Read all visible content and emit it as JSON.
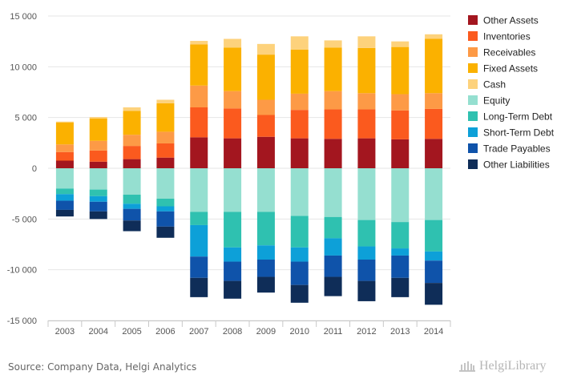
{
  "chart_data": {
    "type": "bar",
    "stacked": true,
    "categories": [
      "2003",
      "2004",
      "2005",
      "2006",
      "2007",
      "2008",
      "2009",
      "2010",
      "2011",
      "2012",
      "2013",
      "2014"
    ],
    "ylim": [
      -15000,
      15000
    ],
    "yticks": [
      15000,
      10000,
      5000,
      0,
      -5000,
      -10000,
      -15000
    ],
    "ytick_labels": [
      "15 000",
      "10 000",
      "5 000",
      "0",
      "-5 000",
      "-10 000",
      "-15 000"
    ],
    "grid": true,
    "legend_position": "right",
    "series": [
      {
        "name": "Other Assets",
        "color": "#a3161f",
        "values": [
          750,
          650,
          900,
          1050,
          3050,
          2950,
          3100,
          2950,
          2900,
          2950,
          2850,
          2900
        ]
      },
      {
        "name": "Inventories",
        "color": "#fb5a1e",
        "values": [
          850,
          1100,
          1300,
          1400,
          2950,
          2950,
          2150,
          2800,
          2900,
          2850,
          2850,
          2950
        ]
      },
      {
        "name": "Receivables",
        "color": "#fd9a46",
        "values": [
          750,
          950,
          1100,
          1150,
          2150,
          1700,
          1500,
          1600,
          1800,
          1600,
          1600,
          1550
        ]
      },
      {
        "name": "Fixed Assets",
        "color": "#fbb100",
        "values": [
          2150,
          2200,
          2350,
          2800,
          4050,
          4300,
          4450,
          4350,
          4300,
          4450,
          4650,
          5350
        ]
      },
      {
        "name": "Cash",
        "color": "#fdd27c",
        "values": [
          100,
          150,
          350,
          350,
          350,
          850,
          1050,
          1300,
          700,
          1150,
          550,
          450
        ]
      },
      {
        "name": "Equity",
        "color": "#95dfd0",
        "values": [
          -2000,
          -2100,
          -2600,
          -3000,
          -4300,
          -4300,
          -4300,
          -4700,
          -4800,
          -5100,
          -5300,
          -5100
        ]
      },
      {
        "name": "Long-Term Debt",
        "color": "#2fc1b0",
        "values": [
          -550,
          -650,
          -900,
          -750,
          -1300,
          -3500,
          -3300,
          -3100,
          -2100,
          -2600,
          -2600,
          -3100
        ]
      },
      {
        "name": "Short-Term Debt",
        "color": "#0da0d8",
        "values": [
          -650,
          -550,
          -500,
          -500,
          -3100,
          -1400,
          -1400,
          -1400,
          -1700,
          -1300,
          -700,
          -900
        ]
      },
      {
        "name": "Trade Payables",
        "color": "#0f53aa",
        "values": [
          -900,
          -950,
          -1150,
          -1500,
          -2100,
          -1900,
          -1700,
          -2300,
          -2100,
          -2100,
          -2200,
          -2200
        ]
      },
      {
        "name": "Other Liabilities",
        "color": "#0f2d58",
        "values": [
          -650,
          -750,
          -1050,
          -1100,
          -1900,
          -1750,
          -1550,
          -1750,
          -1900,
          -2000,
          -1900,
          -2150
        ]
      }
    ]
  },
  "footer": {
    "source": "Source: Company Data, Helgi Analytics",
    "brand": "HelgiLibrary",
    "brand_icon": "library-building-icon"
  }
}
